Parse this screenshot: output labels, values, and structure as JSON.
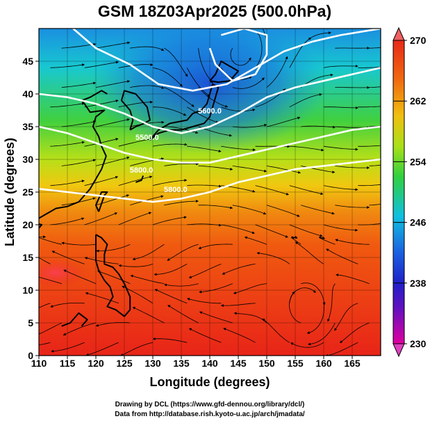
{
  "title": "GSM 18Z03Apr2025 (500.0hPa)",
  "credits": {
    "line1": "Drawing by DCL (https://www.gfd-dennou.org/library/dcl/)",
    "line2": "Data from http://database.rish.kyoto-u.ac.jp/arch/jmadata/"
  },
  "chart_data": {
    "type": "heatmap",
    "xlabel": "Longitude (degrees)",
    "ylabel": "Latitude  (degrees)",
    "xlim": [
      110,
      170
    ],
    "ylim": [
      0,
      50
    ],
    "x_ticks": [
      110,
      115,
      120,
      125,
      130,
      135,
      140,
      145,
      150,
      155,
      160,
      165
    ],
    "y_ticks": [
      0,
      5,
      10,
      15,
      20,
      25,
      30,
      35,
      40,
      45
    ],
    "grid": true,
    "colorbar": {
      "min": 230,
      "max": 270,
      "ticks": [
        270,
        262,
        254,
        246,
        238,
        230
      ],
      "colors": [
        "#e0009a",
        "#3a1cc8",
        "#1a6fe0",
        "#10c8d8",
        "#30d040",
        "#a8e018",
        "#f0c010",
        "#f06a10",
        "#e82818"
      ]
    },
    "contours": [
      {
        "label": "5600.0",
        "lon": 140,
        "lat": 37
      },
      {
        "label": "5500.0",
        "lon": 129,
        "lat": 33
      },
      {
        "label": "5800.0",
        "lon": 128,
        "lat": 28
      },
      {
        "label": "5800.0",
        "lon": 134,
        "lat": 25
      }
    ],
    "contour_paths": [
      [
        [
          110,
          35
        ],
        [
          115,
          34
        ],
        [
          120,
          32.5
        ],
        [
          125,
          31
        ],
        [
          130,
          30
        ],
        [
          135,
          29.5
        ],
        [
          140,
          29.5
        ],
        [
          145,
          30.5
        ],
        [
          150,
          31.5
        ],
        [
          155,
          32.5
        ],
        [
          160,
          33.5
        ],
        [
          165,
          34.5
        ],
        [
          170,
          35
        ]
      ],
      [
        [
          110,
          25.5
        ],
        [
          115,
          25
        ],
        [
          120,
          24.5
        ],
        [
          125,
          24
        ],
        [
          130,
          23.5
        ],
        [
          135,
          24
        ],
        [
          140,
          25
        ],
        [
          145,
          26.5
        ],
        [
          150,
          27.5
        ],
        [
          155,
          28.5
        ],
        [
          160,
          29
        ],
        [
          165,
          29.5
        ],
        [
          170,
          30
        ]
      ],
      [
        [
          110,
          40
        ],
        [
          115,
          39.5
        ],
        [
          120,
          38.5
        ],
        [
          125,
          37
        ],
        [
          130,
          35
        ],
        [
          135,
          34
        ],
        [
          140,
          35
        ],
        [
          145,
          37
        ],
        [
          150,
          39.5
        ],
        [
          155,
          41
        ],
        [
          160,
          42
        ],
        [
          165,
          43
        ],
        [
          170,
          44
        ]
      ],
      [
        [
          116,
          50
        ],
        [
          120,
          47
        ],
        [
          126,
          44.5
        ],
        [
          131,
          41.5
        ],
        [
          137,
          40.5
        ],
        [
          143,
          41.5
        ],
        [
          148,
          44
        ],
        [
          153,
          46.5
        ],
        [
          158,
          48
        ],
        [
          163,
          49
        ],
        [
          170,
          50
        ]
      ],
      [
        [
          140,
          47
        ],
        [
          141,
          44.5
        ],
        [
          144,
          42
        ],
        [
          148,
          43
        ],
        [
          150,
          46
        ],
        [
          150,
          49
        ],
        [
          146,
          50
        ],
        [
          142,
          49
        ]
      ]
    ]
  }
}
